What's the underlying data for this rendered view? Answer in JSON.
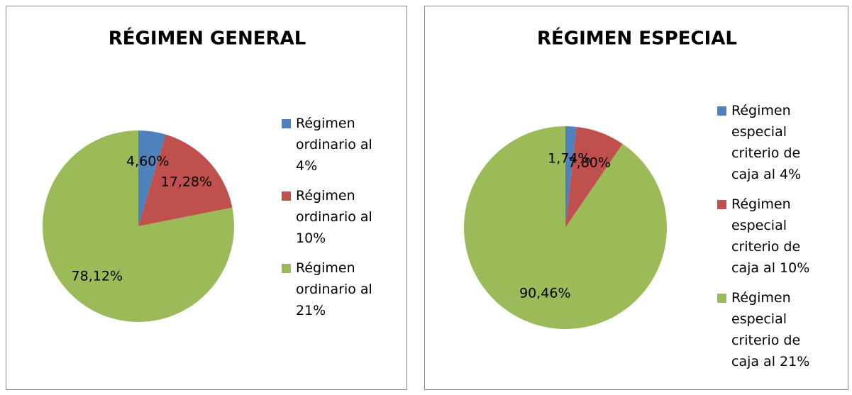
{
  "chart_data": [
    {
      "type": "pie",
      "title": "RÉGIMEN GENERAL",
      "categories": [
        "Régimen ordinario al 4%",
        "Régimen ordinario al 10%",
        "Régimen ordinario al 21%"
      ],
      "values": [
        4.6,
        17.28,
        78.12
      ],
      "value_labels": [
        "4,60%",
        "17,28%",
        "78,12%"
      ],
      "colors": [
        "#4f81bd",
        "#c0504d",
        "#9bbb59"
      ],
      "legend": "right"
    },
    {
      "type": "pie",
      "title": "RÉGIMEN ESPECIAL",
      "categories": [
        "Régimen especial criterio de caja al 4%",
        "Régimen especial criterio de caja al 10%",
        "Régimen especial criterio de caja al 21%"
      ],
      "values": [
        1.74,
        7.8,
        90.46
      ],
      "value_labels": [
        "1,74%",
        "7,80%",
        "90,46%"
      ],
      "colors": [
        "#4f81bd",
        "#c0504d",
        "#9bbb59"
      ],
      "legend": "right"
    }
  ]
}
